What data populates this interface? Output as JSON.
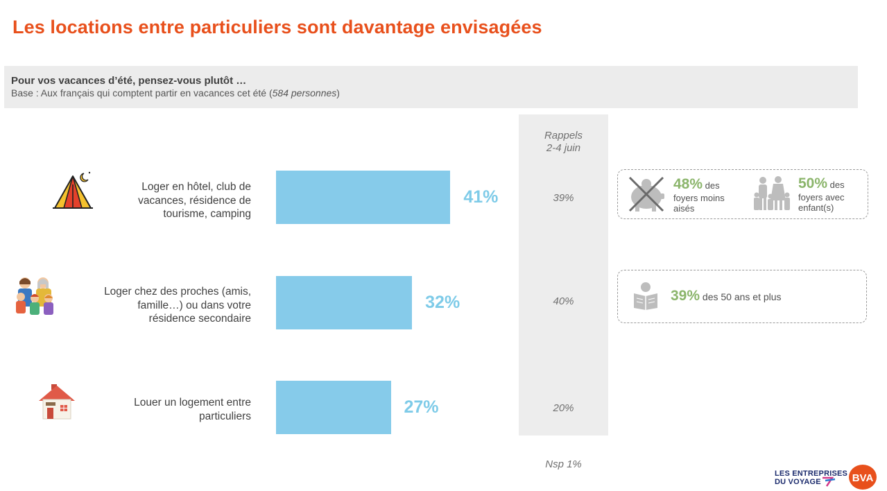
{
  "title": "Les locations entre particuliers sont davantage envisagées",
  "question": "Pour vos vacances d’été, pensez-vous plutôt …",
  "base_prefix": "Base : Aux français qui comptent partir en vacances cet été (",
  "base_count": "584 personnes",
  "base_suffix": ")",
  "colors": {
    "title": "#e8501c",
    "bar": "#86cbea",
    "pct": "#7ecbe8",
    "green": "#8bb56b"
  },
  "recall_header_line1": "Rappels",
  "recall_header_line2": "2-4 juin",
  "nsp": "Nsp 1%",
  "categories": [
    {
      "icon": "tent-icon",
      "lines": [
        "Loger en hôtel, club de",
        "vacances, résidence de",
        "tourisme, camping"
      ]
    },
    {
      "icon": "family-icon",
      "lines": [
        "Loger chez des proches (amis,",
        "famille…) ou dans votre",
        "résidence secondaire"
      ]
    },
    {
      "icon": "house-icon",
      "lines": [
        "Louer un logement entre",
        "particuliers"
      ]
    }
  ],
  "chart_data": {
    "type": "bar",
    "orientation": "horizontal",
    "categories": [
      "Loger en hôtel, club de vacances, résidence de tourisme, camping",
      "Loger chez des proches (amis, famille…) ou dans votre résidence secondaire",
      "Louer un logement entre particuliers"
    ],
    "values": [
      41,
      32,
      27
    ],
    "value_labels": [
      "41%",
      "32%",
      "27%"
    ],
    "recall_values": [
      "39%",
      "40%",
      "20%"
    ],
    "xlim": [
      0,
      100
    ],
    "grid": false
  },
  "callouts": [
    {
      "items": [
        {
          "icon": "crossed-piggy-bank-icon",
          "pct": "48%",
          "text_line1": " des",
          "text_line2": "foyers moins",
          "text_line3": "aisés"
        },
        {
          "icon": "parents-children-icon",
          "pct": "50%",
          "text_line1": " des",
          "text_line2": "foyers avec",
          "text_line3": "enfant(s)"
        }
      ]
    },
    {
      "items": [
        {
          "icon": "reading-person-icon",
          "pct": "39%",
          "text_line1": " des 50 ans et plus"
        }
      ]
    }
  ],
  "logos": {
    "les_entreprises_line1": "LES ENTREPRISES",
    "les_entreprises_line2": "DU VOYAGE",
    "bva": "BVA"
  }
}
